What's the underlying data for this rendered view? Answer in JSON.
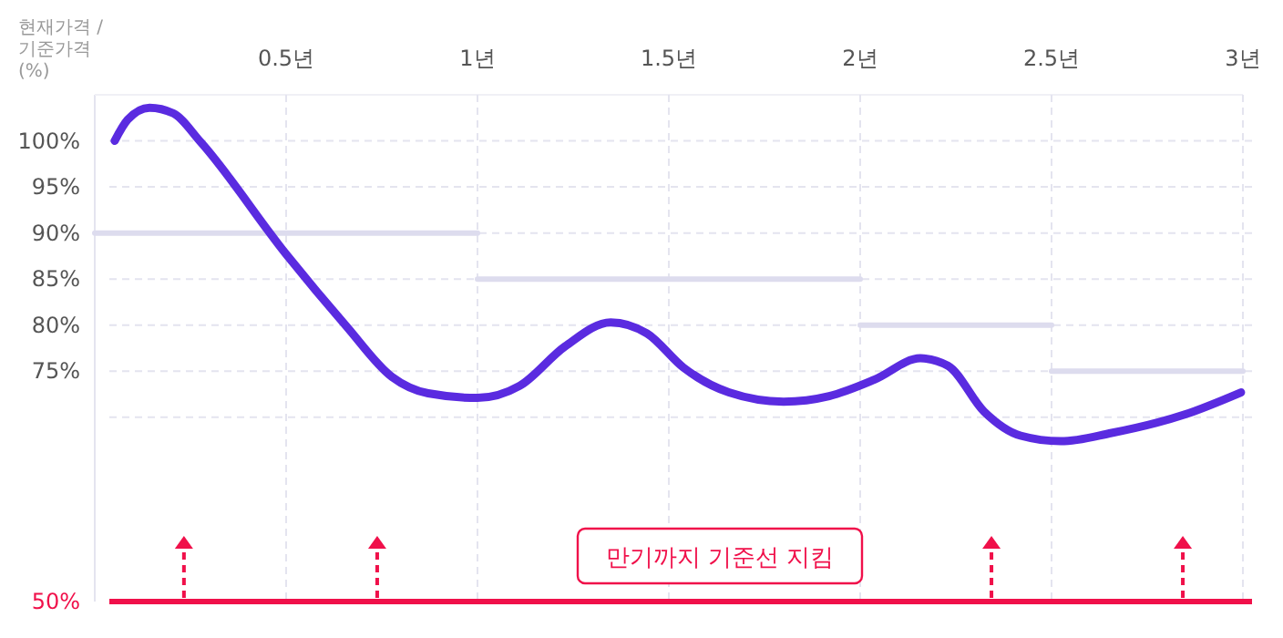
{
  "chart_data": {
    "type": "line",
    "ylabel": "현재가격 / 기준가격 (%)",
    "xlim": [
      0,
      3
    ],
    "xticks": [
      {
        "value": 0.5,
        "label": "0.5년"
      },
      {
        "value": 1,
        "label": "1년"
      },
      {
        "value": 1.5,
        "label": "1.5년"
      },
      {
        "value": 2,
        "label": "2년"
      },
      {
        "value": 2.5,
        "label": "2.5년"
      },
      {
        "value": 3,
        "label": "3년"
      }
    ],
    "ylim": [
      50,
      105
    ],
    "yticks": [
      {
        "value": 70,
        "label": null
      },
      {
        "value": 75,
        "label": "75%"
      },
      {
        "value": 80,
        "label": "80%"
      },
      {
        "value": 85,
        "label": "85%"
      },
      {
        "value": 90,
        "label": "90%"
      },
      {
        "value": 95,
        "label": "95%"
      },
      {
        "value": 100,
        "label": "100%"
      }
    ],
    "grid": true,
    "series": [
      {
        "color": "#dddcee",
        "x": [
          0,
          1
        ],
        "values": [
          90,
          90
        ]
      },
      {
        "color": "#dddcee",
        "x": [
          1,
          2
        ],
        "values": [
          85,
          85
        ]
      },
      {
        "color": "#dddcee",
        "x": [
          2,
          2.5
        ],
        "values": [
          80,
          80
        ]
      },
      {
        "color": "#dddcee",
        "x": [
          2.5,
          3
        ],
        "values": [
          75,
          75
        ]
      },
      {
        "color": "#5a2be0",
        "x": [
          0.052,
          0.086,
          0.143,
          0.205,
          0.276,
          0.5,
          0.657,
          0.776,
          0.871,
          1.0,
          1.11,
          1.229,
          1.348,
          1.443,
          1.538,
          1.657,
          1.8,
          1.919,
          2.038,
          2.157,
          2.229,
          2.324,
          2.419,
          2.524,
          2.657,
          2.848,
          2.995
        ],
        "values": [
          100,
          102.3,
          103.6,
          103,
          99.9,
          87.7,
          79.9,
          74.4,
          72.6,
          72.1,
          73.4,
          77.7,
          80.3,
          79.1,
          75.4,
          72.7,
          71.7,
          72.3,
          74.1,
          76.4,
          75.6,
          70.6,
          68,
          67.4,
          68.3,
          70.3,
          72.7
        ]
      }
    ],
    "ref_lines": [
      {
        "axis": "y",
        "value": 50,
        "label": "50%",
        "color": "#f0104a"
      }
    ],
    "annotations": [
      "만기까지 기준선 지킴"
    ]
  }
}
